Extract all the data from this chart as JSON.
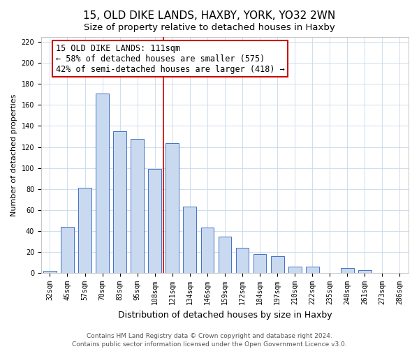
{
  "title": "15, OLD DIKE LANDS, HAXBY, YORK, YO32 2WN",
  "subtitle": "Size of property relative to detached houses in Haxby",
  "xlabel": "Distribution of detached houses by size in Haxby",
  "ylabel": "Number of detached properties",
  "categories": [
    "32sqm",
    "45sqm",
    "57sqm",
    "70sqm",
    "83sqm",
    "95sqm",
    "108sqm",
    "121sqm",
    "134sqm",
    "146sqm",
    "159sqm",
    "172sqm",
    "184sqm",
    "197sqm",
    "210sqm",
    "222sqm",
    "235sqm",
    "248sqm",
    "261sqm",
    "273sqm",
    "286sqm"
  ],
  "values": [
    2,
    44,
    81,
    171,
    135,
    128,
    99,
    124,
    63,
    43,
    35,
    24,
    18,
    16,
    6,
    6,
    0,
    5,
    3,
    0,
    0
  ],
  "bar_color": "#c9daf0",
  "bar_edge_color": "#4472c4",
  "vline_color": "#cc0000",
  "vline_x": 6.5,
  "ylim": [
    0,
    225
  ],
  "yticks": [
    0,
    20,
    40,
    60,
    80,
    100,
    120,
    140,
    160,
    180,
    200,
    220
  ],
  "annotation_text": "15 OLD DIKE LANDS: 111sqm\n← 58% of detached houses are smaller (575)\n42% of semi-detached houses are larger (418) →",
  "annotation_fontsize": 8.5,
  "footer_line1": "Contains HM Land Registry data © Crown copyright and database right 2024.",
  "footer_line2": "Contains public sector information licensed under the Open Government Licence v3.0.",
  "title_fontsize": 11,
  "subtitle_fontsize": 9.5,
  "xlabel_fontsize": 9,
  "ylabel_fontsize": 8,
  "tick_fontsize": 7,
  "footer_fontsize": 6.5,
  "bar_width": 0.75
}
